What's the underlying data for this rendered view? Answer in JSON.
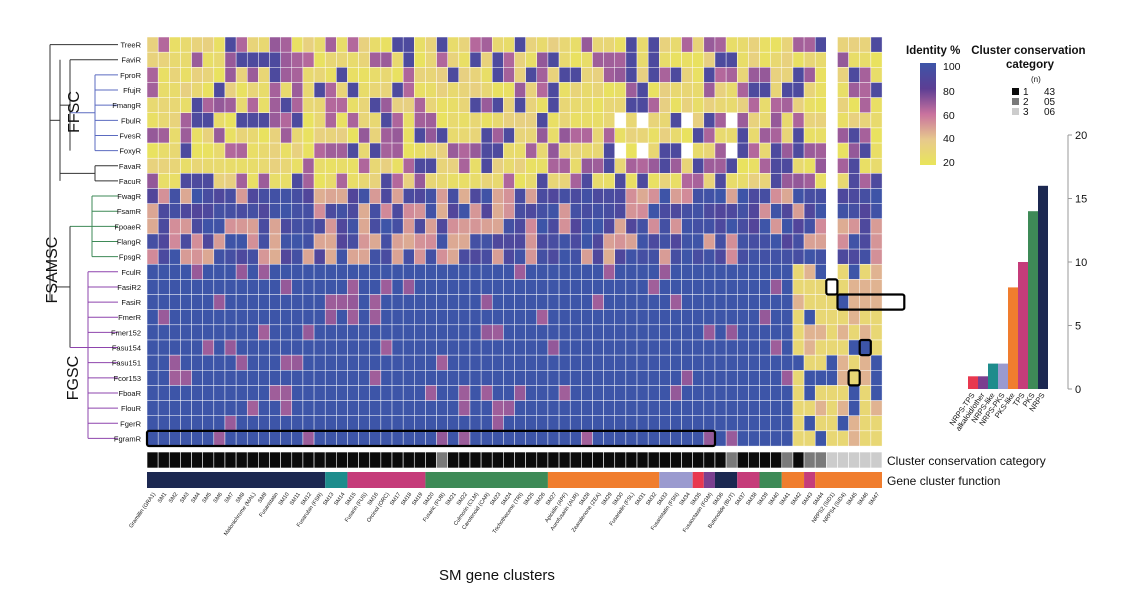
{
  "chart_data": {
    "type": "heatmap",
    "title": "",
    "xlabel": "SM gene clusters",
    "ylabel": "",
    "strains": [
      "TreeR",
      "FaviR",
      "FproR",
      "FfujR",
      "FmangR",
      "FbulR",
      "FvesR",
      "FoxyR",
      "FavaR",
      "FacuR",
      "FwagR",
      "FsamR",
      "FpoaeR",
      "FlangR",
      "FpsgR",
      "FculR",
      "FasiR2",
      "FasiR",
      "FmerR",
      "Fmer152",
      "Fasu154",
      "Fasu151",
      "Fcor153",
      "FboaR",
      "FlouR",
      "FgerR",
      "FgramR"
    ],
    "clades": [
      {
        "name": "FFSC",
        "color": "#5B6BC0"
      },
      {
        "name": "FSAMSC",
        "color": "#5B6BC0"
      },
      {
        "name": "FGSC",
        "color": "#8E44AD"
      }
    ],
    "cluster_labels": [
      "Gramillin (GRA1)",
      "SM1",
      "SM2",
      "SM3",
      "SM4",
      "SM5",
      "SM6",
      "SM7",
      "SM8",
      "Malonichrome (MAL)",
      "SM9",
      "Fusaristatin",
      "SM10",
      "SM11",
      "SM12",
      "Fusarubin (FSR)",
      "SM13",
      "SM14",
      "SM15",
      "Fusarin (FUS)",
      "SM16",
      "Orcinol (ORC)",
      "SM17",
      "SM18",
      "SM19",
      "SM20",
      "Fusaric (FUB)",
      "SM21",
      "SM22",
      "Culmorin (CLM)",
      "Carotenoid (CAR)",
      "SM23",
      "SM24",
      "Trichothecene (TRI)",
      "SM25",
      "SM26",
      "SM27",
      "Apicidin (APF)",
      "Aurofusarin (AUR)",
      "SM28",
      "Zearalenone (ZEA)",
      "SM29",
      "SM30",
      "Fusarielin (FSL)",
      "SM31",
      "SM32",
      "SM33",
      "Fusaristatin (FSN)",
      "SM34",
      "SM35",
      "Fusaoctaxin (FGM)",
      "SM36",
      "Butenolide (BUT)",
      "SM37",
      "SM38",
      "SM39",
      "SM40",
      "SM41",
      "SM42",
      "SM43",
      "SM44",
      "NRPS2 (SID1)",
      "NRPS4 (SID4)",
      "SM45",
      "SM46",
      "SM47"
    ],
    "identity_range": [
      20,
      100
    ],
    "legend_identity": {
      "title": "Identity %",
      "ticks": [
        "100",
        "80",
        "60",
        "40",
        "20"
      ],
      "colors": [
        "#E9E55A",
        "#E7C98D",
        "#C9729E",
        "#5C3E94",
        "#3D55A8"
      ]
    },
    "legend_conservation": {
      "title": "Cluster conservation category",
      "n_label": "(n)",
      "items": [
        {
          "category": "1",
          "n": "43",
          "color": "#0b0b0b"
        },
        {
          "category": "2",
          "n": "05",
          "color": "#7a7a7a"
        },
        {
          "category": "3",
          "n": "06",
          "color": "#cccccc"
        }
      ]
    },
    "conservation_label": "Cluster conservation category",
    "function_label": "Gene cluster function",
    "function_bar": {
      "categories": [
        "NRPS-TPS",
        "alkaloid/other",
        "NRPS-like",
        "NRPS-PKS",
        "PKS-like",
        "TPS",
        "PKS",
        "NRPS"
      ],
      "values": [
        1,
        1,
        2,
        2,
        8,
        10,
        14,
        16
      ],
      "colors": [
        "#E8384F",
        "#7B3F8F",
        "#1E8C8C",
        "#9A9ACF",
        "#F07D2E",
        "#C53C7A",
        "#3E8A57",
        "#1C2851"
      ],
      "ylim": [
        0,
        20
      ],
      "ticks": [
        "20",
        "15",
        "10",
        "5",
        "0"
      ]
    }
  }
}
